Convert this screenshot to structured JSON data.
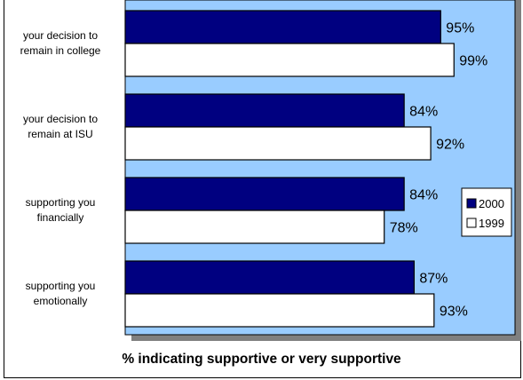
{
  "chart_data": {
    "type": "bar",
    "orientation": "horizontal",
    "categories": [
      "your decision to remain in college",
      "your decision to remain at ISU",
      "supporting you financially",
      "supporting you emotionally"
    ],
    "category_lines": [
      [
        "your decision to",
        "remain in college"
      ],
      [
        "your decision to",
        "remain at ISU"
      ],
      [
        "supporting you",
        "financially"
      ],
      [
        "supporting you",
        "emotionally"
      ]
    ],
    "series": [
      {
        "name": "2000",
        "values": [
          95,
          84,
          84,
          87
        ],
        "color": "#000080"
      },
      {
        "name": "1999",
        "values": [
          99,
          92,
          78,
          93
        ],
        "color": "#ffffff"
      }
    ],
    "value_suffix": "%",
    "xlabel": "% indicating supportive or very supportive",
    "ylabel": "",
    "title": "",
    "xlim": [
      0,
      100
    ],
    "grid": false,
    "legend_position": "right",
    "plot_background": "#99ccff"
  }
}
